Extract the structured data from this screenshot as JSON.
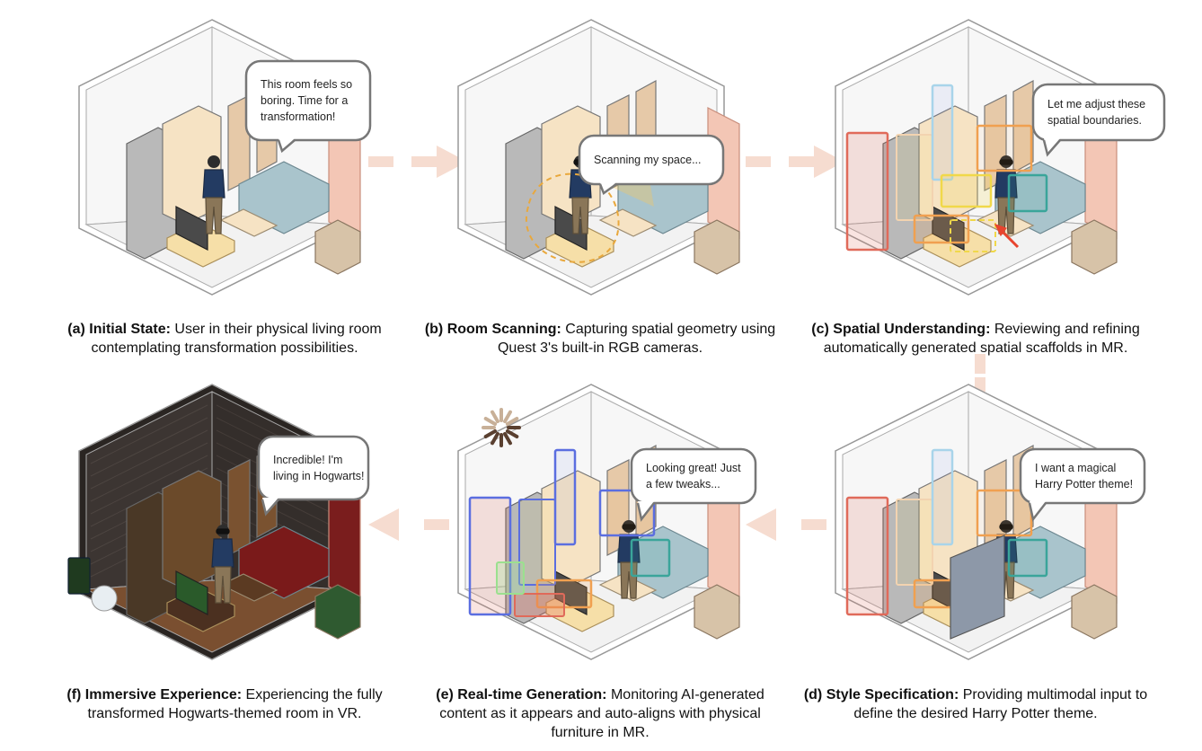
{
  "panels": [
    {
      "id": "a",
      "bubble": [
        "This room feels so",
        "boring. Time for a",
        "transformation!"
      ],
      "caption_label": "(a) Initial State:",
      "caption_text": " User in their physical living room contemplating transformation possibilities."
    },
    {
      "id": "b",
      "bubble": [
        "Scanning my space..."
      ],
      "caption_label": "(b) Room Scanning:",
      "caption_text": " Capturing spatial geometry using Quest 3's built-in RGB cameras."
    },
    {
      "id": "c",
      "bubble": [
        "Let me adjust these",
        "spatial boundaries."
      ],
      "caption_label": "(c) Spatial Understanding:",
      "caption_text": " Reviewing and refining automatically generated spatial scaffolds in MR."
    },
    {
      "id": "d",
      "bubble": [
        "I want a magical",
        "Harry Potter theme!"
      ],
      "caption_label": "(d) Style Specification:",
      "caption_text": " Providing multimodal input to define the desired Harry Potter theme."
    },
    {
      "id": "e",
      "bubble": [
        "Looking great! Just",
        "a few tweaks..."
      ],
      "caption_label": "(e) Real-time Generation:",
      "caption_text": " Monitoring AI-generated content as it appears and auto-aligns with physical furniture in MR."
    },
    {
      "id": "f",
      "bubble": [
        "Incredible! I'm",
        "living in Hogwarts!"
      ],
      "caption_label": "(f) Immersive Experience:",
      "caption_text": " Experiencing the fully transformed Hogwarts-themed room in VR."
    }
  ],
  "colors": {
    "arrow": "#f6dcd0",
    "frame": "#bbbbbb",
    "wall": "#f7f7f7",
    "floor": "#f2f2f2",
    "scaffold_red": "#e06a5a",
    "scaffold_blue": "#5b6ee0",
    "scaffold_yellow": "#f0d84a",
    "scaffold_teal": "#3aa59a",
    "scaffold_orange": "#f0a050",
    "hogwarts_wall": "#3c3532",
    "hogwarts_floor": "#7a4f30"
  }
}
